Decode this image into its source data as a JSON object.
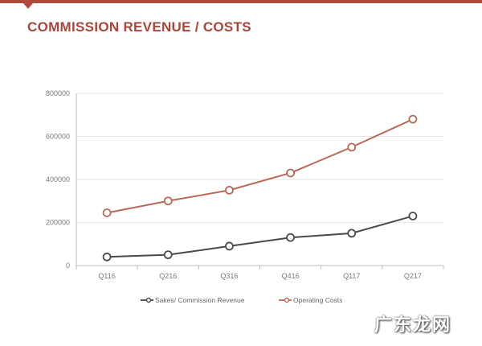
{
  "title": "COMMISSION REVENUE / COSTS",
  "watermark": "广东龙网",
  "colors": {
    "accent": "#b04a3a",
    "title": "#a5473a",
    "series_sales": "#4a4a4a",
    "series_costs": "#b86a57",
    "axis": "#bdbdbd",
    "grid": "#e6e6e6"
  },
  "chart_data": {
    "type": "line",
    "title": "COMMISSION REVENUE / COSTS",
    "categories": [
      "Q116",
      "Q216",
      "Q316",
      "Q416",
      "Q117",
      "Q217"
    ],
    "ylim": [
      0,
      800000
    ],
    "yticks": [
      0,
      200000,
      400000,
      600000,
      800000
    ],
    "ytick_labels": [
      "0",
      "200000",
      "400000",
      "600000",
      "800000"
    ],
    "series": [
      {
        "name": "Sakes/ Commission Revenue",
        "values": [
          40000,
          50000,
          90000,
          130000,
          150000,
          230000
        ]
      },
      {
        "name": "Operating Costs",
        "values": [
          245000,
          300000,
          350000,
          430000,
          550000,
          680000
        ]
      }
    ],
    "legend_position": "bottom",
    "grid": true
  }
}
